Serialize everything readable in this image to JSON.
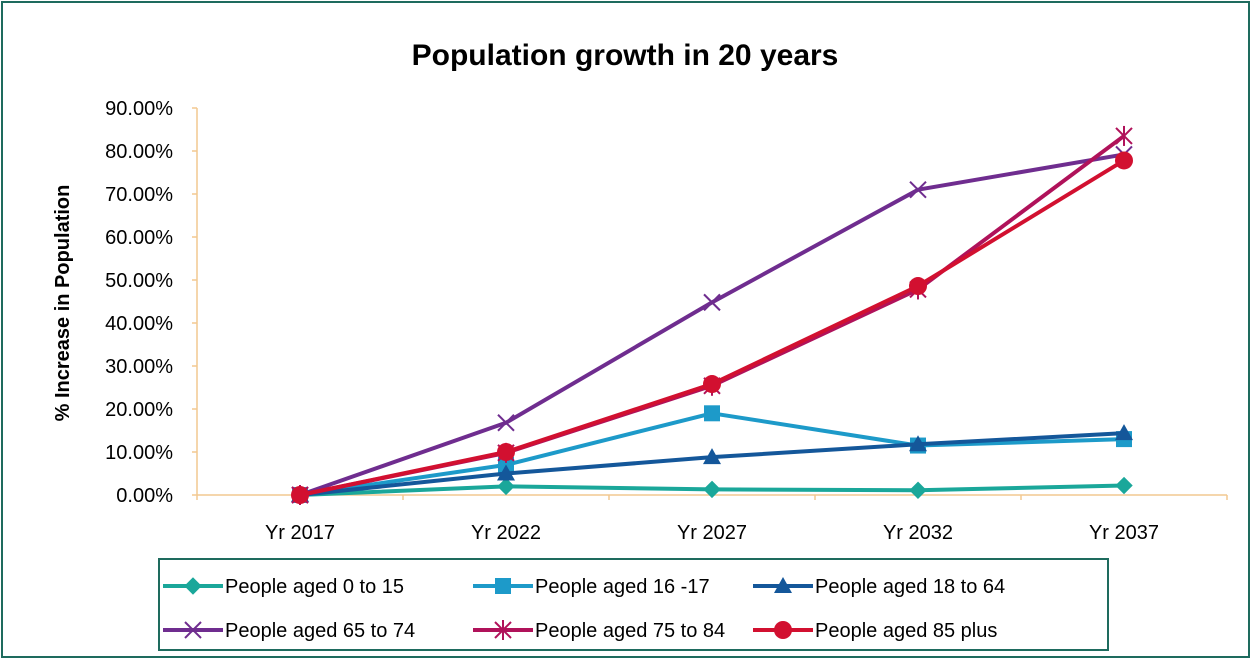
{
  "chart_data": {
    "type": "line",
    "title": "Population growth in 20 years",
    "xlabel": "",
    "ylabel": "% Increase in Population",
    "categories": [
      "Yr 2017",
      "Yr 2022",
      "Yr 2027",
      "Yr 2032",
      "Yr 2037"
    ],
    "y_ticks": [
      "0.00%",
      "10.00%",
      "20.00%",
      "30.00%",
      "40.00%",
      "50.00%",
      "60.00%",
      "70.00%",
      "80.00%",
      "90.00%"
    ],
    "ylim": [
      0,
      90
    ],
    "grid": false,
    "legend_position": "bottom",
    "series": [
      {
        "name": "People aged 0 to 15",
        "values": [
          0,
          2.0,
          1.3,
          1.1,
          2.2
        ],
        "color": "#1aa79a",
        "marker": "diamond"
      },
      {
        "name": "People aged 16 -17",
        "values": [
          0,
          7.0,
          19.0,
          11.5,
          13.0
        ],
        "color": "#1d9ac9",
        "marker": "square"
      },
      {
        "name": "People aged 18 to 64",
        "values": [
          0,
          5.0,
          8.8,
          11.8,
          14.4
        ],
        "color": "#14579a",
        "marker": "triangle"
      },
      {
        "name": "People aged 65 to 74",
        "values": [
          0,
          16.8,
          44.8,
          71.0,
          79.2
        ],
        "color": "#6f2d8f",
        "marker": "x"
      },
      {
        "name": "People aged 75 to 84",
        "values": [
          0,
          9.8,
          25.4,
          47.8,
          83.5
        ],
        "color": "#b0125a",
        "marker": "star"
      },
      {
        "name": "People aged 85 plus",
        "values": [
          0,
          10.0,
          25.8,
          48.6,
          77.8
        ],
        "color": "#d21030",
        "marker": "circle"
      }
    ]
  }
}
